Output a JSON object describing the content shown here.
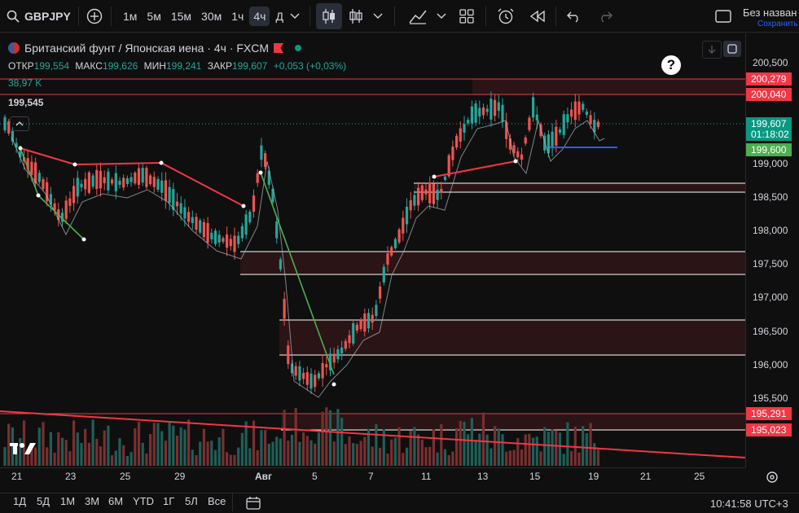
{
  "toolbar": {
    "symbol": "GBPJPY",
    "intervals": [
      "1м",
      "5м",
      "15м",
      "30м",
      "1ч",
      "4ч",
      "Д"
    ],
    "active_interval": "4ч",
    "layout_title": "Без назван",
    "layout_saved": "Сохранить"
  },
  "legend": {
    "title": "Британский фунт / Японская иена · 4ч · FXCM",
    "open_label": "ОТКР",
    "open": "199,554",
    "high_label": "МАКС",
    "high": "199,626",
    "low_label": "МИН",
    "low": "199,241",
    "close_label": "ЗАКР",
    "close": "199,607",
    "change": "+0,053 (+0,03%)",
    "volume": "38,97 K",
    "last_left": "199,545"
  },
  "price_axis": {
    "ticks": [
      "200,500",
      "200,000",
      "199,500",
      "199,000",
      "198,500",
      "198,000",
      "197,500",
      "197,000",
      "196,500",
      "196,000",
      "195,500"
    ],
    "tick_values": [
      200.5,
      200.0,
      199.5,
      199.0,
      198.5,
      198.0,
      197.5,
      197.0,
      196.5,
      196.0,
      195.5
    ],
    "badges": [
      {
        "text": "200,279",
        "color": "#f23645"
      },
      {
        "text": "200,040",
        "color": "#f23645"
      },
      {
        "text": "199,607",
        "color": "#089981"
      },
      {
        "text": "01:18:02",
        "color": "#089981"
      },
      {
        "text": "199,600",
        "color": "#4caf50"
      },
      {
        "text": "195,291",
        "color": "#f23645"
      },
      {
        "text": "195,023",
        "color": "#f23645"
      }
    ]
  },
  "date_axis": [
    "21",
    "23",
    "25",
    "29",
    "Авг",
    "5",
    "7",
    "11",
    "13",
    "15",
    "19",
    "21",
    "25"
  ],
  "bottom": {
    "ranges": [
      "1Д",
      "5Д",
      "1М",
      "3М",
      "6М",
      "YTD",
      "1Г",
      "5Л",
      "Все"
    ],
    "time": "10:41:58 UTC+3"
  },
  "colors": {
    "up": "#26a69a",
    "down": "#ef5350",
    "zone": "#2a1416",
    "bg": "#0f0f0f"
  }
}
